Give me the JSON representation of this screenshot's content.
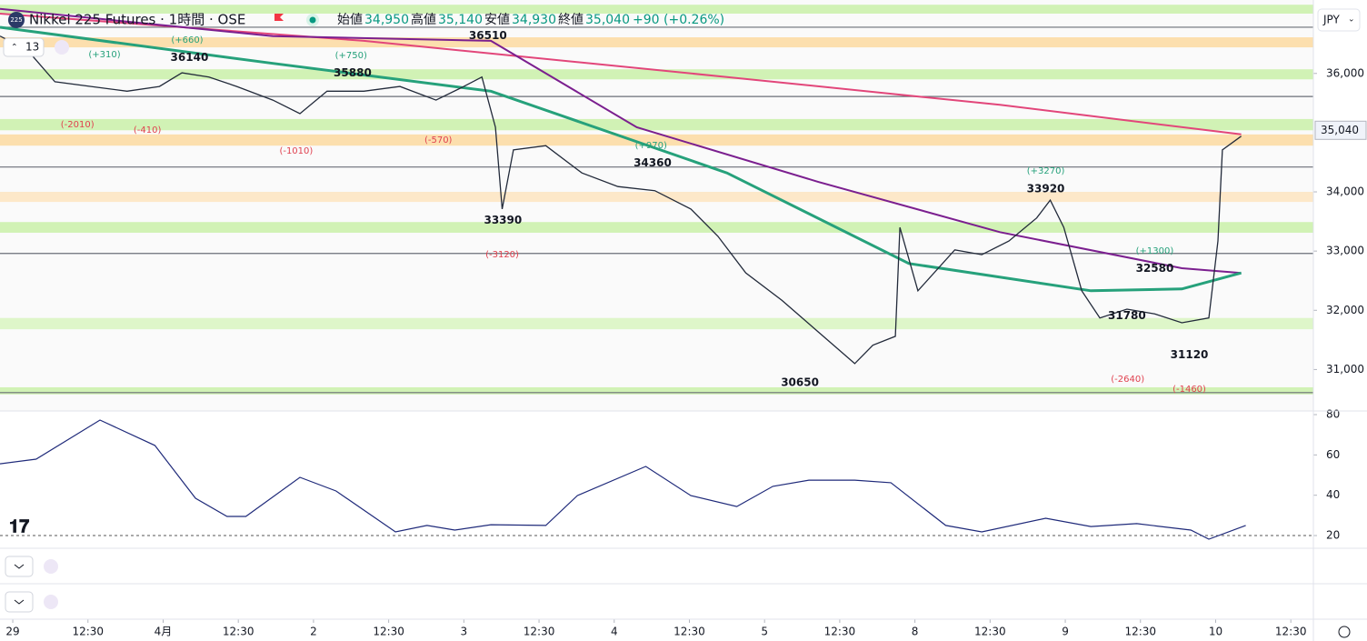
{
  "header": {
    "logo": "225",
    "title": "Nikkei 225 Futures · 1時間 · OSE",
    "open_label": "始値",
    "open": "34,950",
    "high_label": "高値",
    "high": "35,140",
    "low_label": "安値",
    "low": "34,930",
    "close_label": "終値",
    "close": "35,040",
    "change": "+90 (+0.26%)",
    "indicator_count": "13",
    "currency": "JPY"
  },
  "chart_data": [
    {
      "type": "line",
      "xlim": [
        -0.17,
        17.3
      ],
      "ylim": [
        30300,
        37240
      ],
      "xticks": [
        {
          "value": 0,
          "label": "29"
        },
        {
          "value": 1,
          "label": "12:30"
        },
        {
          "value": 2,
          "label": "4月"
        },
        {
          "value": 3,
          "label": "12:30"
        },
        {
          "value": 4,
          "label": "2"
        },
        {
          "value": 5,
          "label": "12:30"
        },
        {
          "value": 6,
          "label": "3"
        },
        {
          "value": 7,
          "label": "12:30"
        },
        {
          "value": 8,
          "label": "4"
        },
        {
          "value": 9,
          "label": "12:30"
        },
        {
          "value": 10,
          "label": "5"
        },
        {
          "value": 11,
          "label": "12:30"
        },
        {
          "value": 12,
          "label": "8"
        },
        {
          "value": 13,
          "label": "12:30"
        },
        {
          "value": 14,
          "label": "9"
        },
        {
          "value": 15,
          "label": "12:30"
        },
        {
          "value": 16,
          "label": "10"
        },
        {
          "value": 17,
          "label": "12:30"
        }
      ],
      "yticks": [
        {
          "value": 31000,
          "label": "31,000"
        },
        {
          "value": 32000,
          "label": "32,000"
        },
        {
          "value": 33000,
          "label": "33,000"
        },
        {
          "value": 34000,
          "label": "34,000"
        },
        {
          "value": 36000,
          "label": "36,000"
        }
      ],
      "last_price": {
        "value": 35040,
        "label": "35,040"
      },
      "zones": [
        {
          "from": 36610,
          "to": 36440,
          "color": "#fcd9a0"
        },
        {
          "from": 34970,
          "to": 34780,
          "color": "#fcd9a0"
        },
        {
          "from": 34000,
          "to": 33830,
          "color": "#fde4bf"
        },
        {
          "from": 37160,
          "to": 37010,
          "color": "#c9f0a8"
        },
        {
          "from": 36070,
          "to": 35900,
          "color": "#c9f0a8"
        },
        {
          "from": 35230,
          "to": 35040,
          "color": "#c9f0a8"
        },
        {
          "from": 33490,
          "to": 33310,
          "color": "#c9f0a8"
        },
        {
          "from": 31870,
          "to": 31680,
          "color": "#d8f5c0"
        },
        {
          "from": 30700,
          "to": 30580,
          "color": "#c9f0a8"
        }
      ],
      "levels": [
        36780,
        35610,
        34420,
        32960,
        30610
      ],
      "lines": [
        {
          "color": "#e2467a",
          "width": 2,
          "x": [
            -0.17,
            4.67,
            9.5,
            13.13,
            16.34
          ],
          "values": [
            37010,
            36550,
            35940,
            35470,
            34970
          ]
        },
        {
          "color": "#7b1f8f",
          "width": 2,
          "x": [
            -0.17,
            3.46,
            6.36,
            8.3,
            10.71,
            13.13,
            15.55,
            16.34
          ],
          "values": [
            37090,
            36630,
            36550,
            35090,
            34170,
            33320,
            32710,
            32630
          ]
        },
        {
          "color": "#26a17b",
          "width": 3,
          "x": [
            -0.17,
            3.46,
            6.36,
            9.5,
            11.92,
            14.34,
            15.55,
            16.34
          ],
          "values": [
            36780,
            36170,
            35700,
            34320,
            32790,
            32330,
            32360,
            32630
          ]
        },
        {
          "color": "#222a3a",
          "width": 1.3,
          "x": [
            -0.17,
            0.19,
            0.56,
            1.04,
            1.52,
            1.95,
            2.25,
            2.61,
            2.98,
            3.46,
            3.82,
            4.18,
            4.67,
            5.15,
            5.63,
            6.0,
            6.24,
            6.42,
            6.51,
            6.66,
            7.09,
            7.57,
            8.05,
            8.54,
            9.02,
            9.38,
            9.75,
            10.23,
            10.71,
            11.2,
            11.44,
            11.74,
            11.8,
            12.04,
            12.53,
            12.89,
            13.25,
            13.62,
            13.8,
            13.98,
            14.22,
            14.46,
            14.82,
            15.19,
            15.55,
            15.91,
            16.03,
            16.09,
            16.34
          ],
          "values": [
            36630,
            36400,
            35860,
            35780,
            35700,
            35780,
            36010,
            35940,
            35780,
            35550,
            35320,
            35700,
            35700,
            35780,
            35550,
            35780,
            35940,
            35090,
            33710,
            34710,
            34780,
            34320,
            34090,
            34020,
            33710,
            33250,
            32630,
            32170,
            31640,
            31100,
            31410,
            31560,
            33400,
            32330,
            33020,
            32940,
            33170,
            33560,
            33860,
            33400,
            32330,
            31870,
            32020,
            31940,
            31790,
            31870,
            33170,
            34710,
            34940
          ]
        }
      ],
      "pivots": [
        {
          "x": 2.35,
          "value": 36140
        },
        {
          "x": 6.32,
          "value": 36510
        },
        {
          "x": 4.52,
          "value": 35880
        },
        {
          "x": 8.51,
          "value": 34360
        },
        {
          "x": 6.52,
          "value": 33390
        },
        {
          "x": 13.74,
          "value": 33920
        },
        {
          "x": 15.19,
          "value": 32580
        },
        {
          "x": 10.47,
          "value": 30650
        },
        {
          "x": 14.82,
          "value": 31780
        },
        {
          "x": 15.65,
          "value": 31120
        }
      ],
      "changes": [
        {
          "x": 1.22,
          "value": 310,
          "label": "(+310)",
          "color": "#26a17b"
        },
        {
          "x": 2.32,
          "value": 660,
          "label": "(+660)",
          "color": "#26a17b"
        },
        {
          "x": 4.5,
          "value": 750,
          "label": "(+750)",
          "color": "#26a17b"
        },
        {
          "x": 8.49,
          "value": 970,
          "label": "(+970)",
          "color": "#26a17b"
        },
        {
          "x": 13.74,
          "value": 3270,
          "label": "(+3270)",
          "color": "#26a17b"
        },
        {
          "x": 15.19,
          "value": 1300,
          "label": "(+1300)",
          "color": "#26a17b"
        },
        {
          "x": 0.86,
          "value": -2010,
          "label": "(-2010)",
          "color": "#e0414f"
        },
        {
          "x": 1.79,
          "value": -410,
          "label": "(-410)",
          "color": "#e0414f"
        },
        {
          "x": 3.77,
          "value": -1010,
          "label": "(-1010)",
          "color": "#e0414f"
        },
        {
          "x": 5.66,
          "value": -570,
          "label": "(-570)",
          "color": "#e0414f"
        },
        {
          "x": 6.51,
          "value": -3120,
          "label": "(-3120)",
          "color": "#e0414f"
        },
        {
          "x": 14.83,
          "value": -2640,
          "label": "(-2640)",
          "color": "#e0414f"
        },
        {
          "x": 15.65,
          "value": -1460,
          "label": "(-1460)",
          "color": "#e0414f"
        }
      ]
    },
    {
      "type": "line",
      "xlim": [
        -0.17,
        17.3
      ],
      "ylim": [
        13.7,
        81.8
      ],
      "yticks": [
        20,
        40,
        60,
        80
      ],
      "color": "#1f2a7a",
      "x": [
        -0.17,
        0.31,
        1.16,
        1.89,
        2.43,
        2.85,
        3.1,
        3.82,
        4.3,
        5.09,
        5.51,
        5.88,
        6.36,
        7.09,
        7.51,
        8.42,
        9.02,
        9.63,
        10.11,
        10.59,
        11.2,
        11.68,
        12.41,
        12.89,
        13.74,
        14.34,
        14.95,
        15.67,
        15.91,
        16.4
      ],
      "values": [
        55.6,
        57.9,
        77.3,
        64.7,
        38.5,
        29.5,
        29.5,
        48.9,
        42.1,
        21.8,
        25.0,
        22.7,
        25.4,
        25.0,
        39.8,
        54.3,
        39.8,
        34.4,
        44.4,
        47.5,
        47.5,
        46.2,
        25.0,
        21.8,
        28.6,
        24.5,
        25.9,
        22.7,
        18.2,
        25.0
      ]
    }
  ]
}
